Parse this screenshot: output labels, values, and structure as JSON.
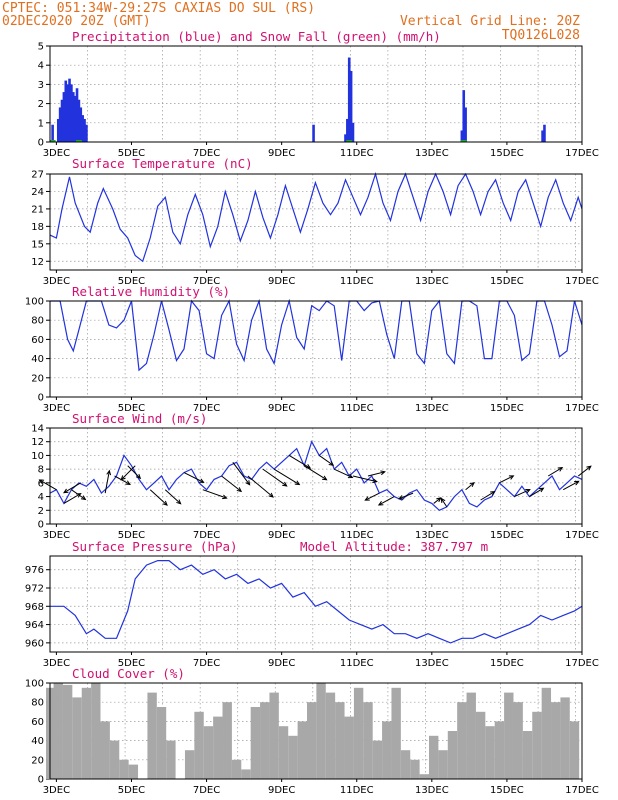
{
  "header": {
    "line1_left": "CPTEC:  051:34W-29:27S  CAXIAS DO SUL (RS)",
    "line2_left": "02DEC2020 20Z (GMT)",
    "line2_right": "Vertical Grid Line: 20Z",
    "line3_right": "TQ0126L028"
  },
  "x_tick_labels": [
    "3DEC",
    "5DEC",
    "7DEC",
    "9DEC",
    "11DEC",
    "13DEC",
    "15DEC",
    "17DEC"
  ],
  "colors": {
    "blue": "#2233dd",
    "green": "#22aa22",
    "gray": "#a8a8a8",
    "title": "#d01070",
    "header": "#e07020"
  },
  "chart_data": [
    {
      "id": "precip",
      "type": "bar",
      "title": "Precipitation (blue) and Snow Fall (green) (mm/h)",
      "ylim": [
        0,
        5
      ],
      "yticks": [
        0,
        1,
        2,
        3,
        4,
        5
      ],
      "x_range_days": [
        2.83,
        17.0
      ],
      "series": [
        {
          "name": "precipitation",
          "points": [
            [
              2.9,
              0.9
            ],
            [
              3.05,
              1.2
            ],
            [
              3.1,
              1.8
            ],
            [
              3.15,
              2.2
            ],
            [
              3.2,
              2.6
            ],
            [
              3.25,
              3.2
            ],
            [
              3.3,
              3.0
            ],
            [
              3.35,
              3.3
            ],
            [
              3.4,
              3.0
            ],
            [
              3.45,
              2.6
            ],
            [
              3.5,
              2.4
            ],
            [
              3.55,
              2.8
            ],
            [
              3.6,
              2.2
            ],
            [
              3.65,
              1.8
            ],
            [
              3.7,
              1.4
            ],
            [
              3.75,
              1.2
            ],
            [
              3.8,
              0.9
            ],
            [
              9.85,
              0.9
            ],
            [
              10.7,
              0.4
            ],
            [
              10.75,
              1.2
            ],
            [
              10.8,
              4.4
            ],
            [
              10.85,
              3.7
            ],
            [
              10.9,
              1.0
            ],
            [
              13.8,
              0.6
            ],
            [
              13.85,
              2.7
            ],
            [
              13.9,
              1.8
            ],
            [
              15.95,
              0.6
            ],
            [
              16.0,
              0.9
            ]
          ]
        },
        {
          "name": "snow fall",
          "points": [
            [
              2.9,
              0.05
            ],
            [
              3.6,
              0.05
            ],
            [
              10.8,
              0.05
            ],
            [
              13.85,
              0.05
            ]
          ]
        }
      ]
    },
    {
      "id": "temp",
      "type": "line",
      "title": "Surface Temperature (nC)",
      "ylim": [
        10.5,
        27
      ],
      "yticks": [
        12,
        15,
        18,
        21,
        24,
        27
      ],
      "x": [
        2.83,
        3.0,
        3.15,
        3.35,
        3.5,
        3.75,
        3.9,
        4.1,
        4.25,
        4.5,
        4.7,
        4.9,
        5.1,
        5.3,
        5.5,
        5.7,
        5.9,
        6.1,
        6.3,
        6.5,
        6.7,
        6.9,
        7.1,
        7.3,
        7.5,
        7.7,
        7.9,
        8.1,
        8.3,
        8.5,
        8.7,
        8.9,
        9.1,
        9.3,
        9.5,
        9.7,
        9.9,
        10.1,
        10.3,
        10.5,
        10.7,
        10.9,
        11.1,
        11.3,
        11.5,
        11.7,
        11.9,
        12.1,
        12.3,
        12.5,
        12.7,
        12.9,
        13.1,
        13.3,
        13.5,
        13.7,
        13.9,
        14.1,
        14.3,
        14.5,
        14.7,
        14.9,
        15.1,
        15.3,
        15.5,
        15.7,
        15.9,
        16.1,
        16.3,
        16.5,
        16.7,
        16.9,
        17.0
      ],
      "y": [
        16.5,
        16,
        21,
        26.5,
        22,
        18,
        17,
        22,
        24.5,
        21,
        17.5,
        16,
        13,
        12,
        16,
        21.5,
        23,
        17,
        15,
        20,
        23.5,
        20,
        14.5,
        18,
        24,
        20,
        15.5,
        19,
        24,
        19.5,
        16,
        20,
        25,
        21,
        17,
        21,
        25.5,
        22,
        20,
        22,
        26,
        23,
        20,
        23,
        27,
        22,
        19,
        24,
        27,
        23,
        19,
        24,
        27,
        24,
        20,
        25,
        27,
        24,
        20,
        24,
        26,
        22,
        19,
        24,
        26,
        22,
        18,
        23,
        26,
        22,
        19,
        23,
        21
      ]
    },
    {
      "id": "rh",
      "type": "line",
      "title": "Relative Humidity (%)",
      "ylim": [
        0,
        100
      ],
      "yticks": [
        0,
        20,
        40,
        60,
        80,
        100
      ],
      "x": [
        2.83,
        3.1,
        3.3,
        3.45,
        3.6,
        3.8,
        4.0,
        4.2,
        4.4,
        4.6,
        4.8,
        5.0,
        5.2,
        5.4,
        5.6,
        5.8,
        6.0,
        6.2,
        6.4,
        6.6,
        6.8,
        7.0,
        7.2,
        7.4,
        7.6,
        7.8,
        8.0,
        8.2,
        8.4,
        8.6,
        8.8,
        9.0,
        9.2,
        9.4,
        9.6,
        9.8,
        10.0,
        10.2,
        10.4,
        10.6,
        10.8,
        11.0,
        11.2,
        11.4,
        11.6,
        11.8,
        12.0,
        12.2,
        12.4,
        12.6,
        12.8,
        13.0,
        13.2,
        13.4,
        13.6,
        13.8,
        14.0,
        14.2,
        14.4,
        14.6,
        14.8,
        15.0,
        15.2,
        15.4,
        15.6,
        15.8,
        16.0,
        16.2,
        16.4,
        16.6,
        16.8,
        17.0
      ],
      "y": [
        100,
        100,
        60,
        48,
        70,
        100,
        100,
        100,
        75,
        72,
        80,
        100,
        28,
        35,
        65,
        100,
        70,
        38,
        50,
        100,
        90,
        45,
        40,
        85,
        100,
        55,
        38,
        80,
        100,
        50,
        35,
        75,
        100,
        62,
        50,
        95,
        90,
        100,
        95,
        38,
        100,
        100,
        90,
        98,
        100,
        65,
        40,
        100,
        100,
        45,
        35,
        90,
        100,
        45,
        35,
        100,
        100,
        95,
        40,
        40,
        100,
        100,
        85,
        38,
        45,
        100,
        100,
        75,
        42,
        48,
        100,
        75
      ]
    },
    {
      "id": "wind",
      "type": "line",
      "title": "Surface Wind (m/s)",
      "ylim": [
        0,
        14
      ],
      "yticks": [
        0,
        2,
        4,
        6,
        8,
        10,
        12,
        14
      ],
      "x": [
        2.83,
        3.0,
        3.2,
        3.4,
        3.6,
        3.8,
        4.0,
        4.2,
        4.4,
        4.6,
        4.8,
        5.0,
        5.2,
        5.4,
        5.6,
        5.8,
        6.0,
        6.2,
        6.4,
        6.6,
        6.8,
        7.0,
        7.2,
        7.4,
        7.6,
        7.8,
        8.0,
        8.2,
        8.4,
        8.6,
        8.8,
        9.0,
        9.2,
        9.4,
        9.6,
        9.8,
        10.0,
        10.2,
        10.4,
        10.6,
        10.8,
        11.0,
        11.2,
        11.4,
        11.6,
        11.8,
        12.0,
        12.2,
        12.4,
        12.6,
        12.8,
        13.0,
        13.2,
        13.4,
        13.6,
        13.8,
        14.0,
        14.2,
        14.4,
        14.6,
        14.8,
        15.0,
        15.2,
        15.4,
        15.6,
        15.8,
        16.0,
        16.2,
        16.4,
        16.6,
        16.8,
        17.0
      ],
      "y": [
        4.5,
        5,
        3,
        5,
        6,
        5.5,
        6.5,
        4.5,
        5.5,
        7,
        10,
        8.5,
        6.5,
        5,
        6,
        7,
        5,
        6.5,
        7.5,
        8,
        6,
        5,
        6.5,
        7,
        8.5,
        9,
        7,
        6.5,
        8,
        9,
        8,
        9,
        10,
        11,
        8.5,
        12,
        10,
        11,
        8,
        9,
        7,
        8,
        6,
        7,
        4.5,
        5,
        4,
        3.5,
        4.5,
        5,
        3.5,
        3,
        2,
        2.5,
        4,
        5,
        3,
        2.5,
        3.5,
        4,
        6,
        5,
        4,
        5.5,
        4,
        5,
        6,
        7,
        5,
        6,
        7,
        6.5
      ],
      "vectors": [
        [
          3.0,
          -0.6,
          0.35
        ],
        [
          3.2,
          0.6,
          0.35
        ],
        [
          3.4,
          0.5,
          -0.35
        ],
        [
          3.65,
          -0.6,
          -0.35
        ],
        [
          4.3,
          0.15,
          0.8
        ],
        [
          4.55,
          0.55,
          -0.3
        ],
        [
          4.9,
          0.45,
          -0.45
        ],
        [
          5.1,
          -0.5,
          -0.5
        ],
        [
          5.5,
          0.6,
          -0.55
        ],
        [
          5.9,
          0.55,
          -0.5
        ],
        [
          6.4,
          0.7,
          -0.35
        ],
        [
          6.9,
          0.85,
          -0.3
        ],
        [
          7.4,
          0.7,
          -0.55
        ],
        [
          7.7,
          0.6,
          -0.8
        ],
        [
          8.1,
          0.9,
          -0.75
        ],
        [
          8.5,
          0.85,
          -0.6
        ],
        [
          8.8,
          0.9,
          -0.55
        ],
        [
          9.2,
          0.75,
          -0.45
        ],
        [
          9.6,
          0.8,
          -0.5
        ],
        [
          10.0,
          0.5,
          -0.35
        ],
        [
          10.4,
          0.65,
          -0.3
        ],
        [
          10.9,
          0.85,
          -0.2
        ],
        [
          11.3,
          0.6,
          0.15
        ],
        [
          11.6,
          -0.5,
          -0.25
        ],
        [
          12.0,
          -0.55,
          -0.3
        ],
        [
          12.5,
          -0.5,
          -0.2
        ],
        [
          13.05,
          0.25,
          0.2
        ],
        [
          13.4,
          -0.2,
          0.3
        ],
        [
          13.9,
          0.3,
          0.25
        ],
        [
          14.3,
          0.5,
          0.3
        ],
        [
          14.8,
          0.5,
          0.25
        ],
        [
          15.2,
          0.55,
          0.25
        ],
        [
          15.6,
          0.5,
          0.3
        ],
        [
          16.1,
          0.5,
          0.3
        ],
        [
          16.5,
          0.55,
          0.3
        ],
        [
          16.9,
          0.45,
          0.35
        ]
      ]
    },
    {
      "id": "pressure",
      "type": "line",
      "title": "Surface Pressure (hPa)",
      "title2": "Model Altitude: 387.797 m",
      "ylim": [
        958,
        979
      ],
      "yticks": [
        960,
        964,
        968,
        972,
        976
      ],
      "x": [
        2.83,
        3.2,
        3.5,
        3.8,
        4.0,
        4.3,
        4.6,
        4.9,
        5.1,
        5.4,
        5.7,
        6.0,
        6.3,
        6.6,
        6.9,
        7.2,
        7.5,
        7.8,
        8.1,
        8.4,
        8.7,
        9.0,
        9.3,
        9.6,
        9.9,
        10.2,
        10.5,
        10.8,
        11.1,
        11.4,
        11.7,
        12.0,
        12.3,
        12.6,
        12.9,
        13.2,
        13.5,
        13.8,
        14.1,
        14.4,
        14.7,
        15.0,
        15.3,
        15.6,
        15.9,
        16.2,
        16.5,
        16.8,
        17.0
      ],
      "y": [
        968,
        968,
        966,
        962,
        963,
        961,
        961,
        967,
        974,
        977,
        978,
        978,
        976,
        977,
        975,
        976,
        974,
        975,
        973,
        974,
        972,
        973,
        970,
        971,
        968,
        969,
        967,
        965,
        964,
        963,
        964,
        962,
        962,
        961,
        962,
        961,
        960,
        961,
        961,
        962,
        961,
        962,
        963,
        964,
        966,
        965,
        966,
        967,
        968
      ]
    },
    {
      "id": "cloud",
      "type": "bar",
      "title": "Cloud Cover (%)",
      "ylim": [
        0,
        100
      ],
      "yticks": [
        0,
        20,
        40,
        60,
        80,
        100
      ],
      "x": [
        2.85,
        3.05,
        3.3,
        3.55,
        3.8,
        4.05,
        4.3,
        4.55,
        4.8,
        5.05,
        5.3,
        5.55,
        5.8,
        6.05,
        6.3,
        6.55,
        6.8,
        7.05,
        7.3,
        7.55,
        7.8,
        8.05,
        8.3,
        8.55,
        8.8,
        9.05,
        9.3,
        9.55,
        9.8,
        10.05,
        10.3,
        10.55,
        10.8,
        11.05,
        11.3,
        11.55,
        11.8,
        12.05,
        12.3,
        12.55,
        12.8,
        13.05,
        13.3,
        13.55,
        13.8,
        14.05,
        14.3,
        14.55,
        14.8,
        15.05,
        15.3,
        15.55,
        15.8,
        16.05,
        16.3,
        16.55,
        16.8
      ],
      "values": [
        95,
        100,
        98,
        85,
        95,
        100,
        60,
        40,
        20,
        15,
        0,
        90,
        75,
        40,
        0,
        30,
        70,
        55,
        65,
        80,
        20,
        10,
        75,
        80,
        90,
        55,
        45,
        60,
        80,
        100,
        90,
        80,
        65,
        95,
        80,
        40,
        60,
        95,
        30,
        20,
        5,
        45,
        30,
        50,
        80,
        90,
        70,
        55,
        60,
        90,
        80,
        50,
        70,
        95,
        80,
        85,
        60
      ]
    }
  ]
}
